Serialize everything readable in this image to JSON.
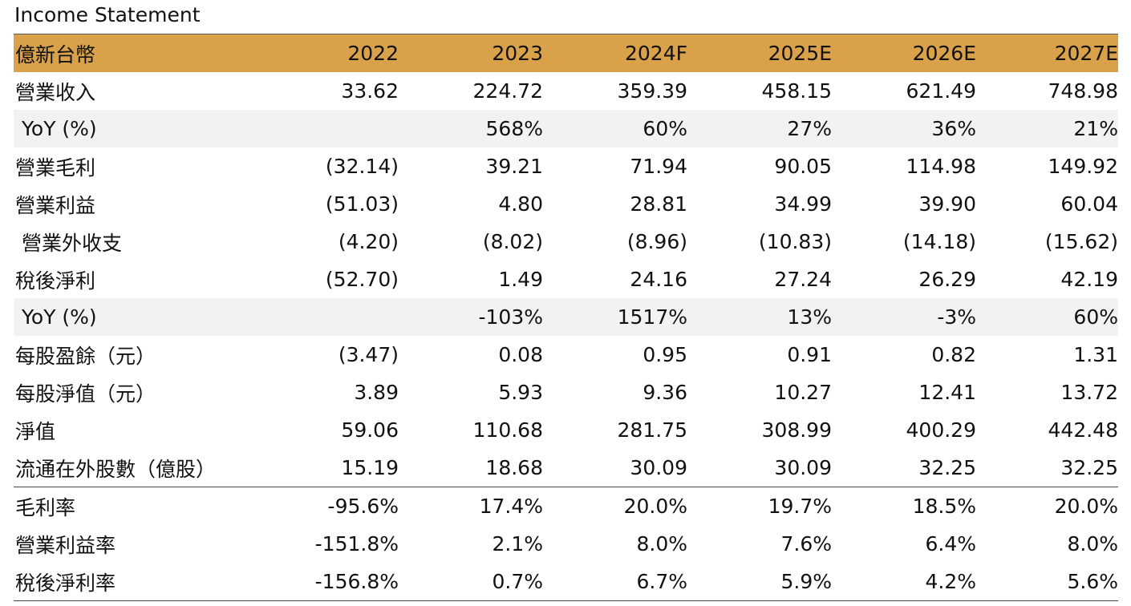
{
  "title": "Income Statement",
  "table": {
    "header": {
      "label": "億新台幣",
      "years": [
        "2022",
        "2023",
        "2024F",
        "2025E",
        "2026E",
        "2027E"
      ]
    },
    "rows": [
      {
        "label": "營業收入",
        "values": [
          "33.62",
          "224.72",
          "359.39",
          "458.15",
          "621.49",
          "748.98"
        ]
      },
      {
        "label": " YoY (%)",
        "values": [
          "",
          "568%",
          "60%",
          "27%",
          "36%",
          "21%"
        ]
      },
      {
        "label": "營業毛利",
        "values": [
          "(32.14)",
          "39.21",
          "71.94",
          "90.05",
          "114.98",
          "149.92"
        ]
      },
      {
        "label": "營業利益",
        "values": [
          "(51.03)",
          "4.80",
          "28.81",
          "34.99",
          "39.90",
          "60.04"
        ]
      },
      {
        "label": " 營業外收支",
        "values": [
          "(4.20)",
          "(8.02)",
          "(8.96)",
          "(10.83)",
          "(14.18)",
          "(15.62)"
        ]
      },
      {
        "label": "稅後淨利",
        "values": [
          "(52.70)",
          "1.49",
          "24.16",
          "27.24",
          "26.29",
          "42.19"
        ]
      },
      {
        "label": " YoY (%)",
        "values": [
          "",
          "-103%",
          "1517%",
          "13%",
          "-3%",
          "60%"
        ]
      },
      {
        "label": "每股盈餘（元）",
        "values": [
          "(3.47)",
          "0.08",
          "0.95",
          "0.91",
          "0.82",
          "1.31"
        ]
      },
      {
        "label": "每股淨值（元）",
        "values": [
          "3.89",
          "5.93",
          "9.36",
          "10.27",
          "12.41",
          "13.72"
        ]
      },
      {
        "label": "淨值",
        "values": [
          "59.06",
          "110.68",
          "281.75",
          "308.99",
          "400.29",
          "442.48"
        ]
      },
      {
        "label": "流通在外股數（億股）",
        "values": [
          "15.19",
          "18.68",
          "30.09",
          "30.09",
          "32.25",
          "32.25"
        ]
      },
      {
        "label": "毛利率",
        "values": [
          "-95.6%",
          "17.4%",
          "20.0%",
          "19.7%",
          "18.5%",
          "20.0%"
        ]
      },
      {
        "label": "營業利益率",
        "values": [
          "-151.8%",
          "2.1%",
          "8.0%",
          "7.6%",
          "6.4%",
          "8.0%"
        ]
      },
      {
        "label": "稅後淨利率",
        "values": [
          "-156.8%",
          "0.7%",
          "6.7%",
          "5.9%",
          "4.2%",
          "5.6%"
        ]
      }
    ]
  },
  "colors": {
    "header_background": "#d9a14a",
    "shaded_row": "#f2f2f2"
  }
}
